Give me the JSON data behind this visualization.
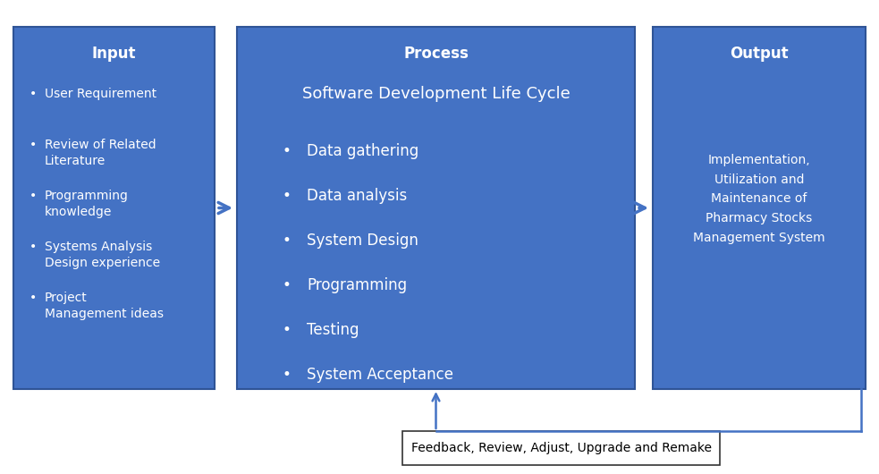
{
  "bg_color": "#ffffff",
  "box_color": "#4472C4",
  "box_edge_color": "#2F5496",
  "text_color": "#ffffff",
  "arrow_color": "#4472C4",
  "feedback_box_color": "#ffffff",
  "feedback_edge_color": "#333333",
  "feedback_text_color": "#000000",
  "input_title": "Input",
  "input_items": [
    "User Requirement",
    "Review of Related\nLiterature",
    "Programming\nknowledge",
    "Systems Analysis\nDesign experience",
    "Project\nManagement ideas"
  ],
  "process_title": "Process",
  "process_subtitle": "Software Development Life Cycle",
  "process_items": [
    "Data gathering",
    "Data analysis",
    "System Design",
    "Programming",
    "Testing",
    "System Acceptance"
  ],
  "output_title": "Output",
  "output_text": "Implementation,\nUtilization and\nMaintenance of\nPharmacy Stocks\nManagement System",
  "feedback_text": "Feedback, Review, Adjust, Upgrade and Remake",
  "title_fontsize": 12,
  "subtitle_fontsize": 13,
  "item_fontsize": 10,
  "output_fontsize": 10,
  "feedback_fontsize": 10
}
